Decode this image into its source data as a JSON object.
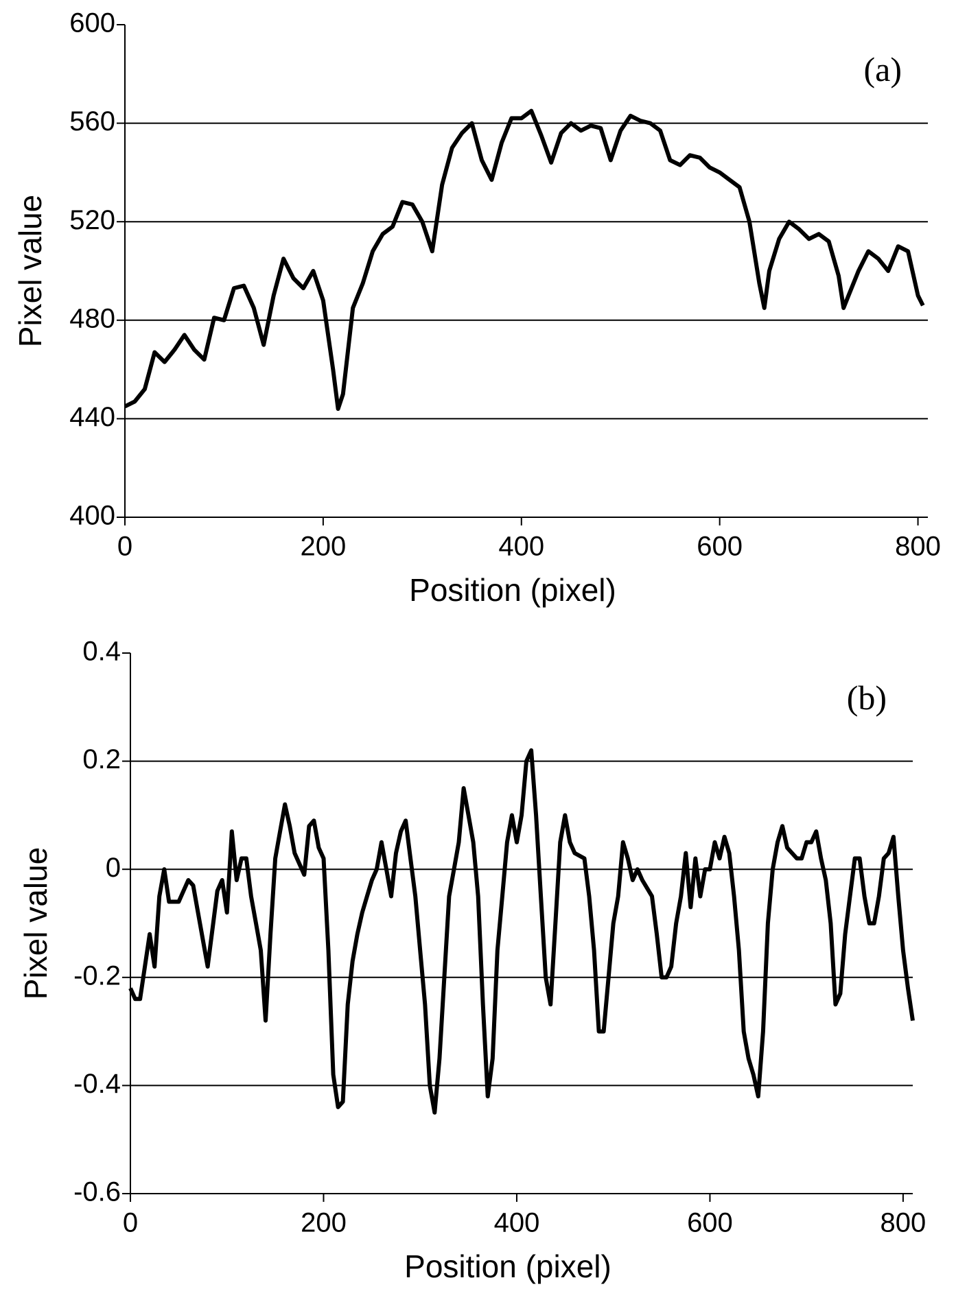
{
  "chart_data": [
    {
      "type": "line",
      "annotation": "(a)",
      "xlabel": "Position (pixel)",
      "ylabel": "Pixel value",
      "xlim": [
        0,
        810
      ],
      "ylim": [
        400,
        600
      ],
      "xticks": [
        0,
        200,
        400,
        600,
        800
      ],
      "yticks": [
        400,
        440,
        480,
        520,
        560,
        600
      ],
      "grid": true,
      "x": [
        0,
        10,
        20,
        30,
        40,
        50,
        60,
        70,
        80,
        90,
        100,
        110,
        120,
        130,
        140,
        150,
        160,
        170,
        180,
        190,
        200,
        210,
        215,
        220,
        230,
        240,
        250,
        260,
        270,
        280,
        290,
        300,
        310,
        320,
        330,
        340,
        350,
        360,
        370,
        380,
        390,
        400,
        410,
        420,
        430,
        440,
        450,
        460,
        470,
        480,
        490,
        500,
        510,
        520,
        530,
        540,
        550,
        560,
        570,
        580,
        590,
        600,
        610,
        620,
        630,
        640,
        645,
        650,
        660,
        670,
        680,
        690,
        700,
        710,
        720,
        725,
        730,
        740,
        750,
        760,
        770,
        780,
        790,
        800,
        805
      ],
      "series": [
        {
          "name": "a",
          "color": "#000000",
          "values": [
            445,
            447,
            452,
            467,
            463,
            468,
            474,
            468,
            464,
            481,
            480,
            493,
            494,
            485,
            470,
            490,
            505,
            497,
            493,
            500,
            488,
            460,
            444,
            450,
            485,
            495,
            508,
            515,
            518,
            528,
            527,
            520,
            508,
            535,
            550,
            556,
            560,
            545,
            537,
            552,
            562,
            562,
            565,
            555,
            544,
            556,
            560,
            557,
            559,
            558,
            545,
            557,
            563,
            561,
            560,
            557,
            545,
            543,
            547,
            546,
            542,
            540,
            537,
            534,
            520,
            495,
            485,
            500,
            513,
            520,
            517,
            513,
            515,
            512,
            498,
            485,
            490,
            500,
            508,
            505,
            500,
            510,
            508,
            490,
            486
          ]
        }
      ]
    },
    {
      "type": "line",
      "annotation": "(b)",
      "xlabel": "Position (pixel)",
      "ylabel": "Pixel value",
      "xlim": [
        0,
        810
      ],
      "ylim": [
        -0.6,
        0.4
      ],
      "xticks": [
        0,
        200,
        400,
        600,
        800
      ],
      "yticks": [
        -0.6,
        -0.4,
        -0.2,
        0,
        0.2,
        0.4
      ],
      "grid": true,
      "x": [
        0,
        5,
        10,
        20,
        25,
        30,
        35,
        40,
        50,
        55,
        60,
        65,
        70,
        80,
        90,
        95,
        100,
        105,
        110,
        115,
        120,
        125,
        130,
        135,
        140,
        145,
        150,
        155,
        160,
        165,
        170,
        180,
        185,
        190,
        195,
        200,
        205,
        210,
        215,
        220,
        225,
        230,
        235,
        240,
        245,
        250,
        255,
        260,
        265,
        270,
        275,
        280,
        285,
        290,
        295,
        300,
        305,
        310,
        315,
        320,
        325,
        330,
        335,
        340,
        345,
        350,
        355,
        360,
        365,
        370,
        375,
        380,
        385,
        390,
        395,
        400,
        405,
        410,
        415,
        420,
        425,
        430,
        435,
        440,
        445,
        450,
        455,
        460,
        470,
        475,
        480,
        485,
        490,
        495,
        500,
        505,
        510,
        515,
        520,
        525,
        530,
        540,
        545,
        550,
        555,
        560,
        565,
        570,
        575,
        580,
        585,
        590,
        595,
        600,
        605,
        610,
        615,
        620,
        625,
        630,
        635,
        640,
        645,
        650,
        655,
        660,
        665,
        670,
        675,
        680,
        690,
        695,
        700,
        705,
        710,
        715,
        720,
        725,
        730,
        735,
        740,
        745,
        750,
        755,
        760,
        765,
        770,
        775,
        780,
        785,
        790,
        795,
        800,
        805,
        810
      ],
      "series": [
        {
          "name": "b",
          "color": "#000000",
          "values": [
            -0.22,
            -0.24,
            -0.24,
            -0.12,
            -0.18,
            -0.05,
            0,
            -0.06,
            -0.06,
            -0.04,
            -0.02,
            -0.03,
            -0.08,
            -0.18,
            -0.04,
            -0.02,
            -0.08,
            0.07,
            -0.02,
            0.02,
            0.02,
            -0.05,
            -0.1,
            -0.15,
            -0.28,
            -0.12,
            0.02,
            0.07,
            0.12,
            0.08,
            0.03,
            -0.01,
            0.08,
            0.09,
            0.04,
            0.02,
            -0.15,
            -0.38,
            -0.44,
            -0.43,
            -0.25,
            -0.17,
            -0.12,
            -0.08,
            -0.05,
            -0.02,
            0,
            0.05,
            0,
            -0.05,
            0.03,
            0.07,
            0.09,
            0.02,
            -0.05,
            -0.15,
            -0.25,
            -0.4,
            -0.45,
            -0.35,
            -0.2,
            -0.05,
            0,
            0.05,
            0.15,
            0.1,
            0.05,
            -0.05,
            -0.25,
            -0.42,
            -0.35,
            -0.15,
            -0.05,
            0.05,
            0.1,
            0.05,
            0.1,
            0.2,
            0.22,
            0.1,
            -0.05,
            -0.2,
            -0.25,
            -0.1,
            0.05,
            0.1,
            0.05,
            0.03,
            0.02,
            -0.05,
            -0.15,
            -0.3,
            -0.3,
            -0.2,
            -0.1,
            -0.05,
            0.05,
            0.02,
            -0.02,
            0,
            -0.02,
            -0.05,
            -0.12,
            -0.2,
            -0.2,
            -0.18,
            -0.1,
            -0.05,
            0.03,
            -0.07,
            0.02,
            -0.05,
            0,
            0,
            0.05,
            0.02,
            0.06,
            0.03,
            -0.05,
            -0.15,
            -0.3,
            -0.35,
            -0.38,
            -0.42,
            -0.3,
            -0.1,
            0,
            0.05,
            0.08,
            0.04,
            0.02,
            0.02,
            0.05,
            0.05,
            0.07,
            0.02,
            -0.02,
            -0.1,
            -0.25,
            -0.23,
            -0.12,
            -0.05,
            0.02,
            0.02,
            -0.05,
            -0.1,
            -0.1,
            -0.05,
            0.02,
            0.03,
            0.06,
            -0.05,
            -0.15,
            -0.22,
            -0.28
          ]
        }
      ]
    }
  ]
}
